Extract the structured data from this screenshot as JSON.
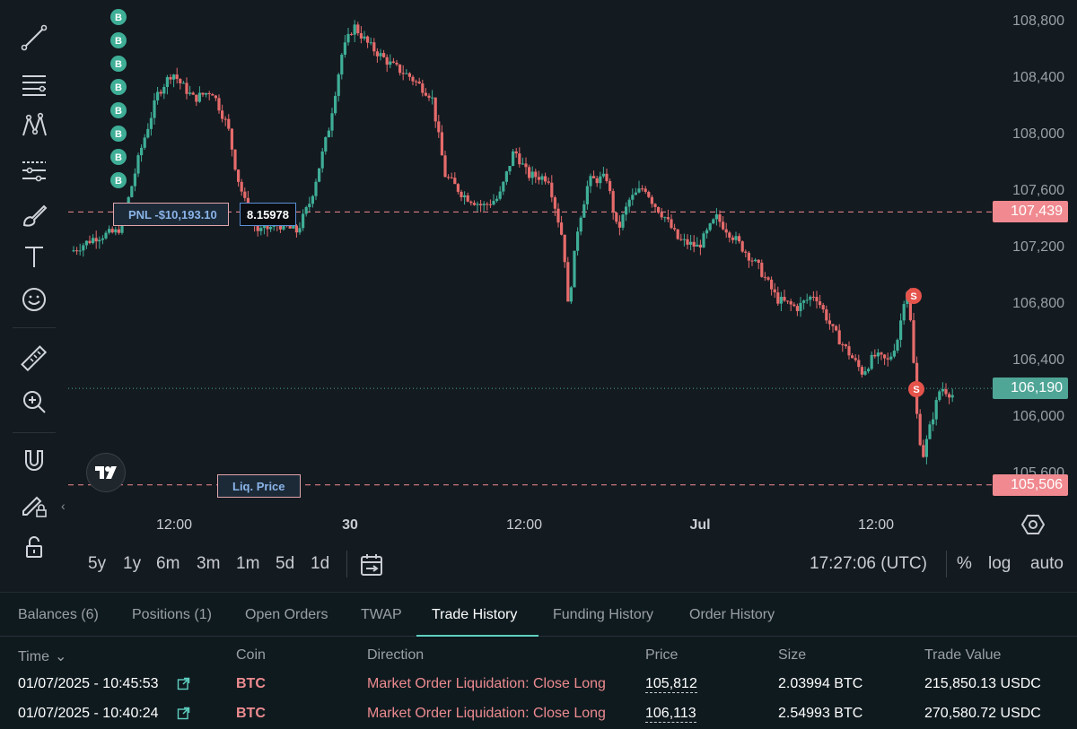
{
  "toolbar": {
    "icons": [
      "trend-line-icon",
      "horizontal-lines-icon",
      "pattern-icon",
      "forecast-icon",
      "brush-icon",
      "text-icon",
      "emoji-icon",
      "ruler-icon",
      "zoom-in-icon",
      "magnet-icon",
      "lock-pencil-icon",
      "unlock-icon"
    ],
    "collapse_glyph": "‹"
  },
  "chart": {
    "price_axis": [
      "108,800",
      "108,400",
      "108,000",
      "107,600",
      "107,200",
      "106,800",
      "106,400",
      "106,000",
      "105,600"
    ],
    "time_axis": [
      "12:00",
      "30",
      "12:00",
      "Jul",
      "12:00"
    ],
    "entry_price_tag": "107,439",
    "current_price_tag": "106,190",
    "liq_price_tag": "105,506",
    "pnl_label": "PNL -$10,193.10",
    "position_qty": "8.15978",
    "liq_label": "Liq. Price",
    "buy_marker": "B",
    "sell_marker": "S",
    "colors": {
      "up": "#3fae97",
      "down": "#e66b6b",
      "entry_tag": "#f08a90",
      "current_tag": "#4fa697",
      "liq_tag": "#f08a90",
      "buy_marker": "#3fae97",
      "sell_marker": "#e5534b"
    }
  },
  "controls": {
    "ranges": [
      "5y",
      "1y",
      "6m",
      "3m",
      "1m",
      "5d",
      "1d"
    ],
    "clock": "17:27:06 (UTC)",
    "scale_options": [
      "%",
      "log",
      "auto"
    ]
  },
  "panel": {
    "tabs": [
      "Balances (6)",
      "Positions (1)",
      "Open Orders",
      "TWAP",
      "Trade History",
      "Funding History",
      "Order History"
    ],
    "active_tab": "Trade History",
    "columns": [
      "Time",
      "Coin",
      "Direction",
      "Price",
      "Size",
      "Trade Value"
    ],
    "time_caret": "⌄",
    "rows": [
      {
        "time": "01/07/2025 - 10:45:53",
        "coin": "BTC",
        "direction": "Market Order Liquidation: Close Long",
        "price": "105,812",
        "size": "2.03994 BTC",
        "value": "215,850.13 USDC"
      },
      {
        "time": "01/07/2025 - 10:40:24",
        "coin": "BTC",
        "direction": "Market Order Liquidation: Close Long",
        "price": "106,113",
        "size": "2.54993 BTC",
        "value": "270,580.72 USDC"
      }
    ]
  }
}
